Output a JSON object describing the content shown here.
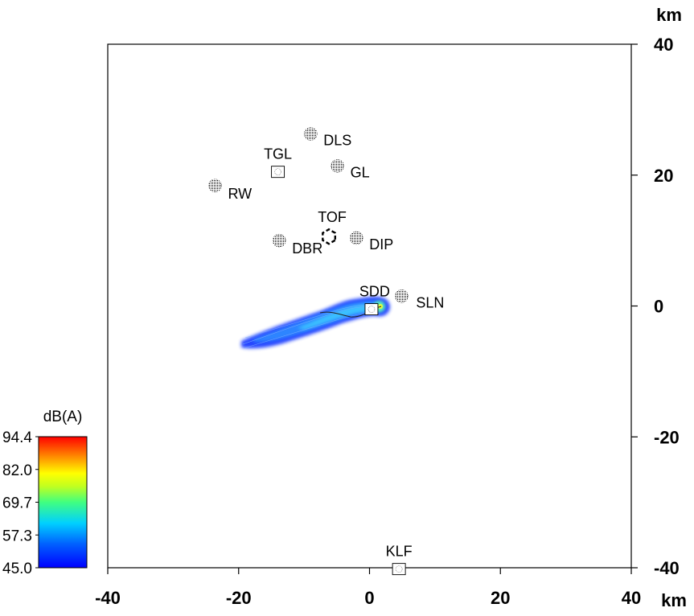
{
  "map": {
    "x_unit": "km",
    "y_unit": "km",
    "x_ticks": [
      {
        "value": -40,
        "label": "-40"
      },
      {
        "value": -20,
        "label": "-20"
      },
      {
        "value": 0,
        "label": "0"
      },
      {
        "value": 20,
        "label": "20"
      },
      {
        "value": 40,
        "label": "40"
      }
    ],
    "y_ticks": [
      {
        "value": 40,
        "label": "40"
      },
      {
        "value": 20,
        "label": "20"
      },
      {
        "value": 0,
        "label": "0"
      },
      {
        "value": -20,
        "label": "-20"
      },
      {
        "value": -40,
        "label": "-40"
      }
    ],
    "xlim": [
      -40,
      40
    ],
    "ylim": [
      -40,
      40
    ]
  },
  "sites": [
    {
      "id": "tgl",
      "label": "TGL",
      "x": -14,
      "y": 20.5,
      "shape": "square"
    },
    {
      "id": "dls",
      "label": "DLS",
      "x": -9,
      "y": 26.3,
      "shape": "circle"
    },
    {
      "id": "gl",
      "label": "GL",
      "x": -4.9,
      "y": 21.4,
      "shape": "circle"
    },
    {
      "id": "rw",
      "label": "RW",
      "x": -23.6,
      "y": 18.4,
      "shape": "circle"
    },
    {
      "id": "tof",
      "label": "TOF",
      "x": -6.2,
      "y": 10.6,
      "shape": "hexagon"
    },
    {
      "id": "dbr",
      "label": "DBR",
      "x": -13.8,
      "y": 10,
      "shape": "circle"
    },
    {
      "id": "dip",
      "label": "DIP",
      "x": -2,
      "y": 10.4,
      "shape": "circle"
    },
    {
      "id": "sdd",
      "label": "SDD",
      "x": 0.3,
      "y": -0.5,
      "shape": "square"
    },
    {
      "id": "sln",
      "label": "SLN",
      "x": 4.9,
      "y": 1.5,
      "shape": "circle"
    },
    {
      "id": "klf",
      "label": "KLF",
      "x": 4.5,
      "y": -40.2,
      "shape": "square"
    }
  ],
  "noise_footprint": {
    "unit_label": "dB(A)",
    "min": 45.0,
    "max": 94.4,
    "colorbar_ticks": [
      "94.4",
      "82.0",
      "69.7",
      "57.3",
      "45.0"
    ],
    "colors": [
      "#0000ff",
      "#0080ff",
      "#00e0ff",
      "#40ff80",
      "#e0ff20",
      "#ffa000",
      "#ff0000"
    ]
  }
}
